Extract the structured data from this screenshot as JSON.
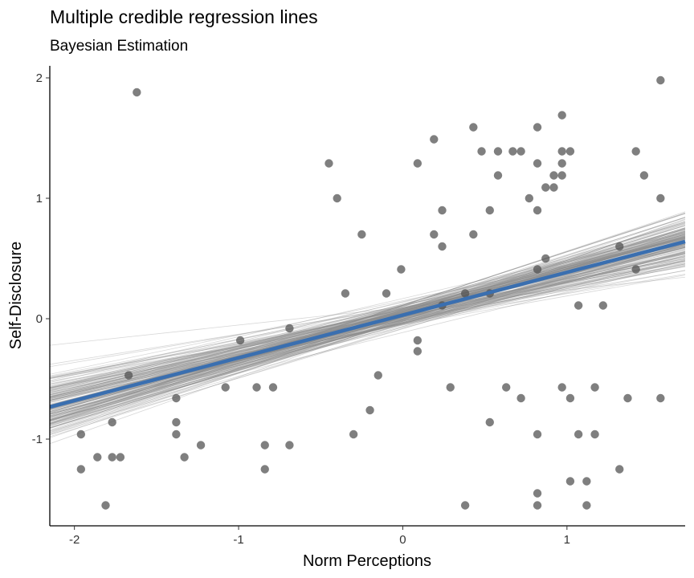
{
  "chart_data": {
    "type": "scatter",
    "title": "Multiple credible regression lines",
    "subtitle": "Bayesian Estimation",
    "xlabel": "Norm Perceptions",
    "ylabel": "Self-Disclosure",
    "xlim": [
      -2.15,
      1.72
    ],
    "ylim": [
      -1.72,
      2.1
    ],
    "x_ticks": [
      -2,
      -1,
      0,
      1
    ],
    "x_tick_labels": [
      "-2",
      "-1",
      "0",
      "1"
    ],
    "y_ticks": [
      -1,
      0,
      1,
      2
    ],
    "y_tick_labels": [
      "-1",
      "0",
      "1",
      "2"
    ],
    "grid": false,
    "point_color": "#4d4d4d",
    "mean_line_color": "#3a6fb0",
    "draw_line_color": "#8c8c8c",
    "mean_line": {
      "intercept": 0.03,
      "slope": 0.355
    },
    "points": [
      {
        "x": 1.57,
        "y": 1.98
      },
      {
        "x": -1.62,
        "y": 1.88
      },
      {
        "x": 0.43,
        "y": 1.59
      },
      {
        "x": 0.82,
        "y": 1.59
      },
      {
        "x": 0.97,
        "y": 1.69
      },
      {
        "x": 0.19,
        "y": 1.49
      },
      {
        "x": 0.48,
        "y": 1.39
      },
      {
        "x": 0.58,
        "y": 1.39
      },
      {
        "x": 0.67,
        "y": 1.39
      },
      {
        "x": 0.72,
        "y": 1.39
      },
      {
        "x": 0.97,
        "y": 1.39
      },
      {
        "x": 1.02,
        "y": 1.39
      },
      {
        "x": 1.42,
        "y": 1.39
      },
      {
        "x": -0.45,
        "y": 1.29
      },
      {
        "x": 0.09,
        "y": 1.29
      },
      {
        "x": 0.82,
        "y": 1.29
      },
      {
        "x": 0.97,
        "y": 1.29
      },
      {
        "x": 0.58,
        "y": 1.19
      },
      {
        "x": 0.92,
        "y": 1.19
      },
      {
        "x": 0.97,
        "y": 1.19
      },
      {
        "x": 1.47,
        "y": 1.19
      },
      {
        "x": 0.87,
        "y": 1.09
      },
      {
        "x": 0.92,
        "y": 1.09
      },
      {
        "x": -0.4,
        "y": 1.0
      },
      {
        "x": 0.77,
        "y": 1.0
      },
      {
        "x": 1.57,
        "y": 1.0
      },
      {
        "x": 0.24,
        "y": 0.9
      },
      {
        "x": 0.53,
        "y": 0.9
      },
      {
        "x": 0.82,
        "y": 0.9
      },
      {
        "x": -0.25,
        "y": 0.7
      },
      {
        "x": 0.19,
        "y": 0.7
      },
      {
        "x": 0.43,
        "y": 0.7
      },
      {
        "x": 0.24,
        "y": 0.6
      },
      {
        "x": 1.32,
        "y": 0.6
      },
      {
        "x": 0.87,
        "y": 0.5
      },
      {
        "x": -0.01,
        "y": 0.41
      },
      {
        "x": 0.82,
        "y": 0.41
      },
      {
        "x": 1.42,
        "y": 0.41
      },
      {
        "x": -0.35,
        "y": 0.21
      },
      {
        "x": -0.1,
        "y": 0.21
      },
      {
        "x": 0.38,
        "y": 0.21
      },
      {
        "x": 0.53,
        "y": 0.21
      },
      {
        "x": 0.24,
        "y": 0.11
      },
      {
        "x": 1.07,
        "y": 0.11
      },
      {
        "x": 1.22,
        "y": 0.11
      },
      {
        "x": -0.69,
        "y": -0.08
      },
      {
        "x": -0.99,
        "y": -0.18
      },
      {
        "x": 0.09,
        "y": -0.18
      },
      {
        "x": 0.09,
        "y": -0.27
      },
      {
        "x": -1.67,
        "y": -0.47
      },
      {
        "x": -0.15,
        "y": -0.47
      },
      {
        "x": -1.08,
        "y": -0.57
      },
      {
        "x": -0.89,
        "y": -0.57
      },
      {
        "x": -0.79,
        "y": -0.57
      },
      {
        "x": 0.29,
        "y": -0.57
      },
      {
        "x": 0.63,
        "y": -0.57
      },
      {
        "x": 0.97,
        "y": -0.57
      },
      {
        "x": 1.17,
        "y": -0.57
      },
      {
        "x": -1.38,
        "y": -0.66
      },
      {
        "x": 0.72,
        "y": -0.66
      },
      {
        "x": 1.02,
        "y": -0.66
      },
      {
        "x": 1.37,
        "y": -0.66
      },
      {
        "x": 1.57,
        "y": -0.66
      },
      {
        "x": -0.2,
        "y": -0.76
      },
      {
        "x": -1.77,
        "y": -0.86
      },
      {
        "x": -1.38,
        "y": -0.86
      },
      {
        "x": 0.53,
        "y": -0.86
      },
      {
        "x": -1.96,
        "y": -0.96
      },
      {
        "x": -1.38,
        "y": -0.96
      },
      {
        "x": -0.3,
        "y": -0.96
      },
      {
        "x": 0.82,
        "y": -0.96
      },
      {
        "x": 1.07,
        "y": -0.96
      },
      {
        "x": 1.17,
        "y": -0.96
      },
      {
        "x": -1.23,
        "y": -1.05
      },
      {
        "x": -0.84,
        "y": -1.05
      },
      {
        "x": -0.69,
        "y": -1.05
      },
      {
        "x": -1.86,
        "y": -1.15
      },
      {
        "x": -1.77,
        "y": -1.15
      },
      {
        "x": -1.72,
        "y": -1.15
      },
      {
        "x": -1.33,
        "y": -1.15
      },
      {
        "x": -1.96,
        "y": -1.25
      },
      {
        "x": -0.84,
        "y": -1.25
      },
      {
        "x": 1.32,
        "y": -1.25
      },
      {
        "x": 1.02,
        "y": -1.35
      },
      {
        "x": 1.12,
        "y": -1.35
      },
      {
        "x": 0.82,
        "y": -1.45
      },
      {
        "x": -1.81,
        "y": -1.55
      },
      {
        "x": 0.38,
        "y": -1.55
      },
      {
        "x": 0.82,
        "y": -1.55
      },
      {
        "x": 1.12,
        "y": -1.55
      }
    ]
  }
}
